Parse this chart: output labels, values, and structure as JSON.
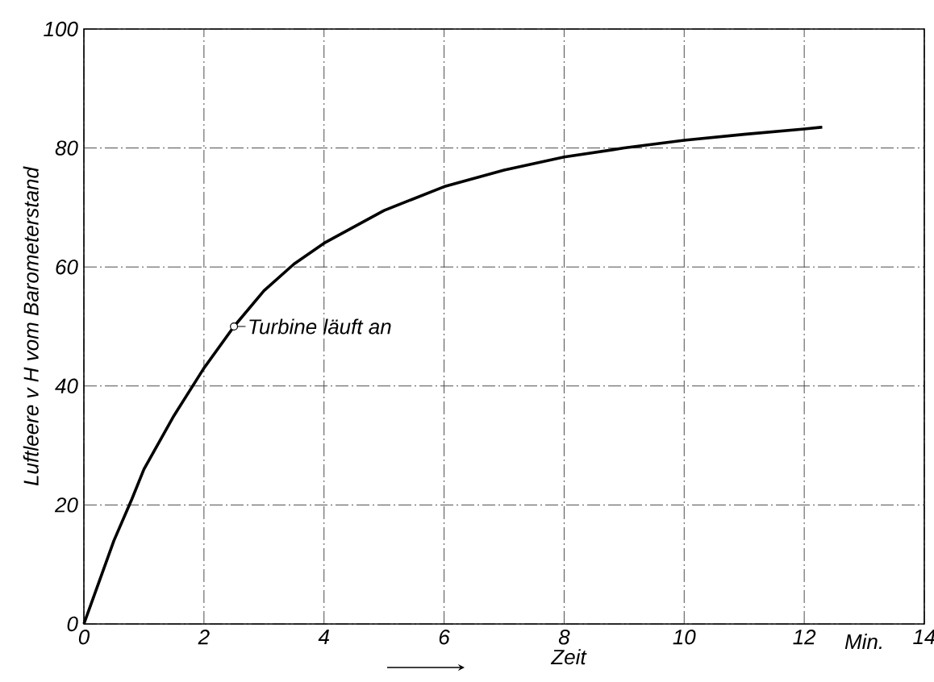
{
  "chart_data": {
    "type": "line",
    "xlabel": "Zeit",
    "ylabel": "Luftleere v H vom Barometerstand",
    "x": [
      0,
      0.25,
      0.5,
      0.8,
      1,
      1.5,
      2,
      2.5,
      3,
      3.5,
      4,
      5,
      6,
      7,
      8,
      9,
      10,
      11,
      12,
      12.3
    ],
    "series": [
      {
        "color": "#000000",
        "values": [
          0,
          7,
          14,
          21,
          26,
          35,
          43,
          50,
          56,
          60.5,
          64,
          69.5,
          73.5,
          76.3,
          78.5,
          80,
          81.3,
          82.3,
          83.2,
          83.5
        ]
      }
    ],
    "xlim": [
      0,
      14
    ],
    "ylim": [
      0,
      100
    ],
    "xticks": [
      0,
      2,
      4,
      6,
      8,
      10,
      12,
      14
    ],
    "yticks": [
      0,
      20,
      40,
      60,
      80,
      100
    ],
    "grid": true,
    "marker": "none",
    "line_style": "solid",
    "annotations": [
      {
        "text": "Turbine läuft an",
        "x": 2.5,
        "y": 50
      },
      "Min."
    ]
  }
}
